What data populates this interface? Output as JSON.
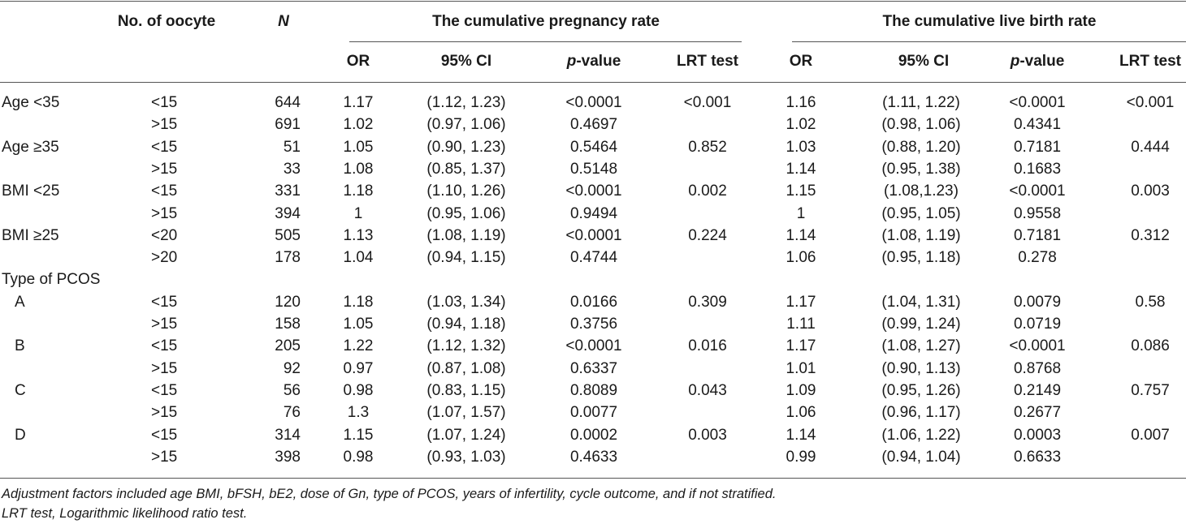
{
  "headers": {
    "oocyte": "No. of oocyte",
    "n": "N",
    "pregnancy_group": "The cumulative pregnancy rate",
    "livebirth_group": "The cumulative live birth rate",
    "sub": [
      "OR",
      "95% CI",
      "p-value",
      "LRT test"
    ],
    "pvalue_italic": "p",
    "pvalue_rest": "-value"
  },
  "rows": [
    {
      "group": "Age <35",
      "oocyte": "<15",
      "n": "644",
      "p_or": "1.17",
      "p_ci": "(1.12, 1.23)",
      "p_p": "<0.0001",
      "p_lrt": "<0.001",
      "l_or": "1.16",
      "l_ci": "(1.11, 1.22)",
      "l_p": "<0.0001",
      "l_lrt": "<0.001"
    },
    {
      "group": "",
      "oocyte": ">15",
      "n": "691",
      "p_or": "1.02",
      "p_ci": "(0.97, 1.06)",
      "p_p": "0.4697",
      "p_lrt": "",
      "l_or": "1.02",
      "l_ci": "(0.98, 1.06)",
      "l_p": "0.4341",
      "l_lrt": ""
    },
    {
      "group": "Age ≥35",
      "oocyte": "<15",
      "n": "51",
      "p_or": "1.05",
      "p_ci": "(0.90, 1.23)",
      "p_p": "0.5464",
      "p_lrt": "0.852",
      "l_or": "1.03",
      "l_ci": "(0.88, 1.20)",
      "l_p": "0.7181",
      "l_lrt": "0.444"
    },
    {
      "group": "",
      "oocyte": ">15",
      "n": "33",
      "p_or": "1.08",
      "p_ci": "(0.85, 1.37)",
      "p_p": "0.5148",
      "p_lrt": "",
      "l_or": "1.14",
      "l_ci": "(0.95, 1.38)",
      "l_p": "0.1683",
      "l_lrt": ""
    },
    {
      "group": "BMI <25",
      "oocyte": "<15",
      "n": "331",
      "p_or": "1.18",
      "p_ci": "(1.10, 1.26)",
      "p_p": "<0.0001",
      "p_lrt": "0.002",
      "l_or": "1.15",
      "l_ci": "(1.08,1.23)",
      "l_p": "<0.0001",
      "l_lrt": "0.003"
    },
    {
      "group": "",
      "oocyte": ">15",
      "n": "394",
      "p_or": "1",
      "p_ci": "(0.95, 1.06)",
      "p_p": "0.9494",
      "p_lrt": "",
      "l_or": "1",
      "l_ci": "(0.95, 1.05)",
      "l_p": "0.9558",
      "l_lrt": ""
    },
    {
      "group": "BMI ≥25",
      "oocyte": "<20",
      "n": "505",
      "p_or": "1.13",
      "p_ci": "(1.08, 1.19)",
      "p_p": "<0.0001",
      "p_lrt": "0.224",
      "l_or": "1.14",
      "l_ci": "(1.08, 1.19)",
      "l_p": "0.7181",
      "l_lrt": "0.312"
    },
    {
      "group": "",
      "oocyte": ">20",
      "n": "178",
      "p_or": "1.04",
      "p_ci": "(0.94, 1.15)",
      "p_p": "0.4744",
      "p_lrt": "",
      "l_or": "1.06",
      "l_ci": "(0.95, 1.18)",
      "l_p": "0.278",
      "l_lrt": ""
    },
    {
      "group": "Type of PCOS",
      "oocyte": "",
      "n": "",
      "p_or": "",
      "p_ci": "",
      "p_p": "",
      "p_lrt": "",
      "l_or": "",
      "l_ci": "",
      "l_p": "",
      "l_lrt": ""
    },
    {
      "group": "A",
      "oocyte": "<15",
      "n": "120",
      "p_or": "1.18",
      "p_ci": "(1.03, 1.34)",
      "p_p": "0.0166",
      "p_lrt": "0.309",
      "l_or": "1.17",
      "l_ci": "(1.04, 1.31)",
      "l_p": "0.0079",
      "l_lrt": "0.58"
    },
    {
      "group": "",
      "oocyte": ">15",
      "n": "158",
      "p_or": "1.05",
      "p_ci": "(0.94, 1.18)",
      "p_p": "0.3756",
      "p_lrt": "",
      "l_or": "1.11",
      "l_ci": "(0.99, 1.24)",
      "l_p": "0.0719",
      "l_lrt": ""
    },
    {
      "group": "B",
      "oocyte": "<15",
      "n": "205",
      "p_or": "1.22",
      "p_ci": "(1.12, 1.32)",
      "p_p": "<0.0001",
      "p_lrt": "0.016",
      "l_or": "1.17",
      "l_ci": "(1.08, 1.27)",
      "l_p": "<0.0001",
      "l_lrt": "0.086"
    },
    {
      "group": "",
      "oocyte": ">15",
      "n": "92",
      "p_or": "0.97",
      "p_ci": "(0.87, 1.08)",
      "p_p": "0.6337",
      "p_lrt": "",
      "l_or": "1.01",
      "l_ci": "(0.90, 1.13)",
      "l_p": "0.8768",
      "l_lrt": ""
    },
    {
      "group": "C",
      "oocyte": "<15",
      "n": "56",
      "p_or": "0.98",
      "p_ci": "(0.83, 1.15)",
      "p_p": "0.8089",
      "p_lrt": "0.043",
      "l_or": "1.09",
      "l_ci": "(0.95, 1.26)",
      "l_p": "0.2149",
      "l_lrt": "0.757"
    },
    {
      "group": "",
      "oocyte": ">15",
      "n": "76",
      "p_or": "1.3",
      "p_ci": "(1.07, 1.57)",
      "p_p": "0.0077",
      "p_lrt": "",
      "l_or": "1.06",
      "l_ci": "(0.96, 1.17)",
      "l_p": "0.2677",
      "l_lrt": ""
    },
    {
      "group": "D",
      "oocyte": "<15",
      "n": "314",
      "p_or": "1.15",
      "p_ci": "(1.07, 1.24)",
      "p_p": "0.0002",
      "p_lrt": "0.003",
      "l_or": "1.14",
      "l_ci": "(1.06, 1.22)",
      "l_p": "0.0003",
      "l_lrt": "0.007"
    },
    {
      "group": "",
      "oocyte": ">15",
      "n": "398",
      "p_or": "0.98",
      "p_ci": "(0.93, 1.03)",
      "p_p": "0.4633",
      "p_lrt": "",
      "l_or": "0.99",
      "l_ci": "(0.94, 1.04)",
      "l_p": "0.6633",
      "l_lrt": ""
    }
  ],
  "footnotes": [
    "Adjustment factors included age BMI, bFSH, bE2, dose of Gn, type of PCOS, years of infertility, cycle outcome, and if not stratified.",
    "LRT test, Logarithmic likelihood ratio test."
  ]
}
